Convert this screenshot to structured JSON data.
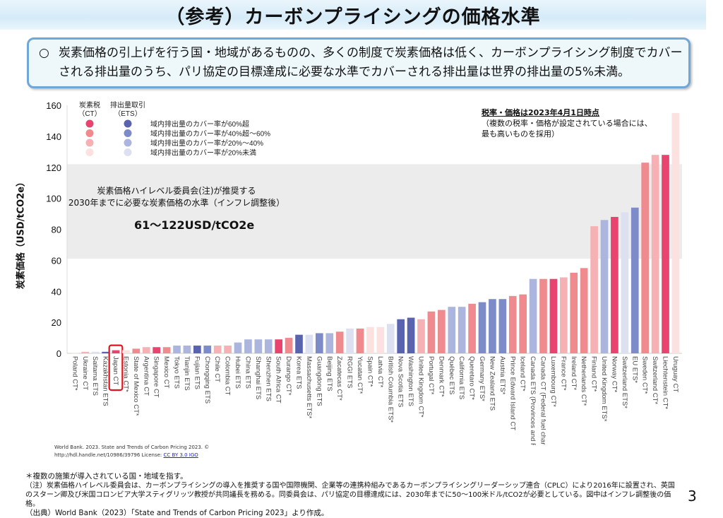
{
  "page": {
    "title": "（参考）カーボンプライシングの価格水準",
    "summary_bullet": "○",
    "summary": "炭素価格の引上げを行う国・地域があるものの、多くの制度で炭素価格は低く、カーボンプライシング制度でカバーされる排出量のうち、パリ協定の目標達成に必要な水準でカバーされる排出量は世界の排出量の5%未満。",
    "page_number": "3"
  },
  "chart_data": {
    "type": "bar",
    "ylabel": "炭素価格（USD/tCO2e）",
    "ylim": [
      0,
      160
    ],
    "yticks": [
      0,
      20,
      40,
      60,
      80,
      100,
      120,
      140,
      160
    ],
    "grid": false,
    "highlighted_category": "Japan CT",
    "band": {
      "range": [
        61,
        122
      ],
      "text_line1": "炭素価格ハイレベル委員会(注)が推奨する",
      "text_line2": "2030年までに必要な炭素価格の水準（インフレ調整後）",
      "value": "61～122USD/tCO2e",
      "color": "#ececec"
    },
    "as_of": {
      "title": "税率・価格は2023年4月1日時点",
      "line1": "（複数の税率・価格が設定されている場合には、",
      "line2": "最も高いものを採用）"
    },
    "legend": {
      "placement": "top-left",
      "ct_header": "炭素税",
      "ct_sub": "（CT）",
      "ets_header": "排出量取引",
      "ets_sub": "（ETS）",
      "levels": [
        {
          "label": "域内排出量のカバー率が60%超",
          "ct_color": "#e8446f",
          "ets_color": "#5a64ae"
        },
        {
          "label": "域内排出量のカバー率が40%超～60%",
          "ct_color": "#ef8a8e",
          "ets_color": "#7d8bc8"
        },
        {
          "label": "域内排出量のカバー率が20%～40%",
          "ct_color": "#f5b1b3",
          "ets_color": "#abb5dd"
        },
        {
          "label": "域内排出量のカバー率が20%未満",
          "ct_color": "#fbe1e0",
          "ets_color": "#dde0f1"
        }
      ]
    },
    "categories": [
      "Poland CT*",
      "Ukraine CT",
      "Saitama ETS",
      "Kazakhstan ETS",
      "Japan CT",
      "Estonia CT*",
      "State of Mexico CT*",
      "Argentina CT",
      "Singapore CT",
      "Mexico CT",
      "Tokyo ETS",
      "Tianjin ETS",
      "Fujian ETS",
      "Chongqing ETS",
      "Chile CT",
      "Colombia CT",
      "Hubei ETS",
      "China ETS",
      "Shanghai ETS",
      "Shenzhen ETS",
      "South Africa CT",
      "Durango CT*",
      "Korea ETS",
      "Massachusetts ETS*",
      "Guangdong ETS",
      "Beijing ETS",
      "Zacatecas CT*",
      "RGGI ETS",
      "Yucatan CT*",
      "Spain CT*",
      "Latvia CT*",
      "British Columbia ETS*",
      "Nova Scotia ETS",
      "Washington ETS",
      "United Kingdom CT*",
      "Portugal CT*",
      "Denmark CT*",
      "Québec ETS",
      "California ETS",
      "Queretaro CT*",
      "Germany ETS*",
      "New Zealand ETS",
      "Austria ETS*",
      "Prince Edward Island CT",
      "Iceland CT*",
      "Canada ETS (Provinces and Federal)",
      "Canada CT (Federal fuel charge)",
      "Luxembourg CT*",
      "France CT*",
      "Ireland CT*",
      "Netherlands CT*",
      "Finland CT*",
      "United Kingdom ETS*",
      "Norway CT*",
      "Switzerland ETS*",
      "EU ETS*",
      "Sweden CT*",
      "Switzerland CT*",
      "Liechtenstein CT*",
      "Uruguay CT"
    ],
    "values": [
      0.1,
      1,
      1,
      1,
      2,
      2,
      3,
      4,
      4,
      4,
      5,
      5,
      5,
      5,
      5,
      5,
      7,
      9,
      9,
      9,
      9,
      10,
      12,
      12,
      13,
      13,
      14,
      16,
      16,
      17,
      17,
      19,
      22,
      23,
      22,
      27,
      28,
      30,
      30,
      32,
      33,
      35,
      35,
      37,
      38,
      48,
      48,
      48,
      49,
      52,
      55,
      82,
      86,
      88,
      91,
      94,
      123,
      128,
      128,
      155
    ],
    "coverage_level": [
      4,
      3,
      4,
      1,
      1,
      4,
      2,
      3,
      1,
      2,
      3,
      3,
      1,
      2,
      3,
      3,
      3,
      3,
      3,
      3,
      1,
      2,
      1,
      4,
      2,
      3,
      2,
      4,
      2,
      4,
      4,
      4,
      1,
      1,
      3,
      2,
      2,
      3,
      3,
      2,
      2,
      2,
      2,
      2,
      2,
      3,
      2,
      1,
      3,
      2,
      2,
      3,
      3,
      1,
      4,
      2,
      2,
      3,
      1,
      4
    ]
  },
  "footer": {
    "source_line1": "World Bank. 2023. State and Trends of Carbon Pricing  2023. ©",
    "source_line2": "http://hdl.handle.net/10986/39796 License: ",
    "license_link": "CC BY 3.0 IGO",
    "note_asterisk": "＊複数の施策が導入されている国・地域を指す。",
    "note1": "（注）炭素価格ハイレベル委員会は、カーボンプライシングの導入を推奨する国や国際機関、企業等の連携枠組みであるカーボンプライシングリーダーシップ連合（CPLC）により2016年に設置され、英国のスターン卿及び米国コロンビア大学スティグリッツ教授が共同議長を務める。同委員会は、パリ協定の目標達成には、2030年までに50～100米ドル/tCO2が必要としている。図中はインフレ調整後の価格。",
    "source_note": "（出典）World Bank（2023）「State and Trends of Carbon Pricing 2023」より作成。"
  }
}
